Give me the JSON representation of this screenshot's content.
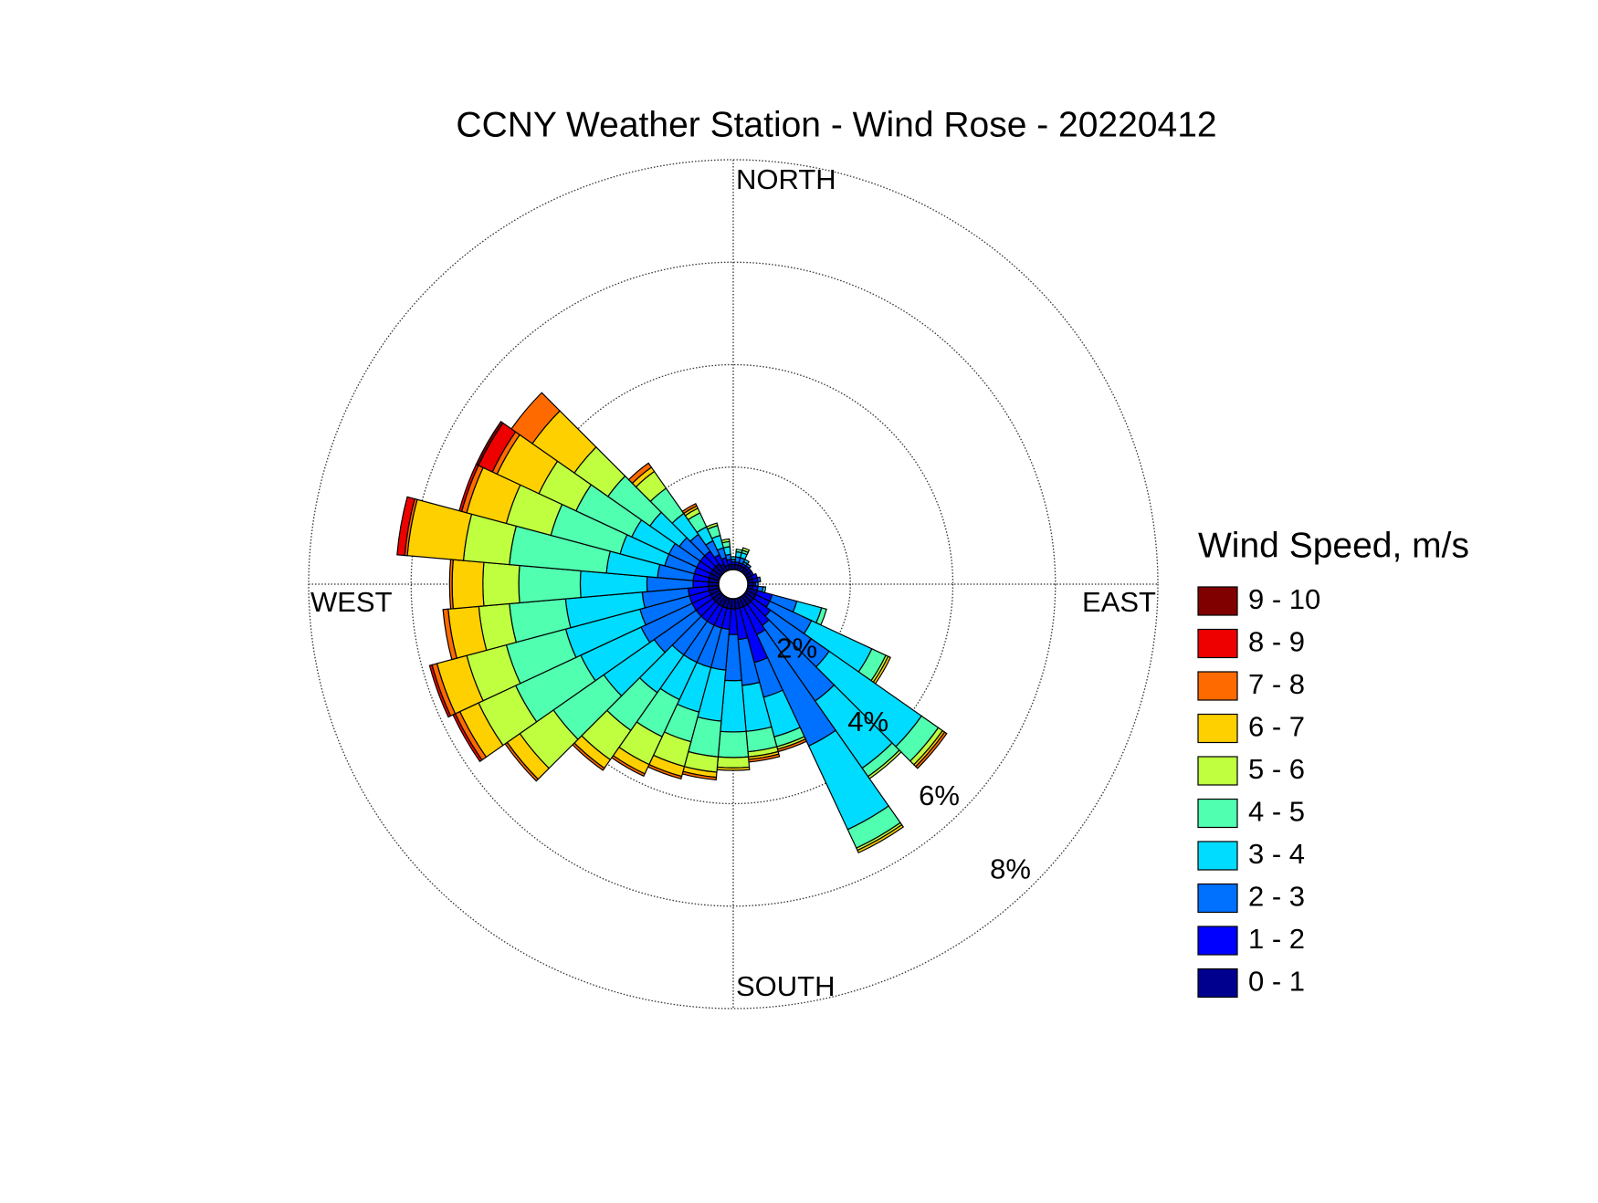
{
  "chart_data": {
    "type": "windrose",
    "title": "CCNY Weather Station - Wind Rose - 20220412",
    "legend_title": "Wind Speed, m/s",
    "direction_labels": [
      "NORTH",
      "EAST",
      "SOUTH",
      "WEST"
    ],
    "categories": [
      null,
      null,
      null,
      null,
      null,
      null,
      null,
      null,
      null,
      null,
      null,
      null,
      null,
      null,
      null,
      null,
      null,
      null,
      null,
      null,
      null,
      null,
      null,
      null,
      null,
      null,
      null,
      null,
      null,
      null,
      null,
      null,
      null,
      null,
      null,
      null
    ],
    "rlim": [
      0,
      8
    ],
    "rticks": [
      {
        "value": 2,
        "label": "2%"
      },
      {
        "value": 4,
        "label": "4%"
      },
      {
        "value": 6,
        "label": "6%"
      },
      {
        "value": 8,
        "label": "8%"
      }
    ],
    "series": [
      {
        "name": "0 - 1",
        "color": "#00008f",
        "values": [
          0.1,
          0.1,
          0.1,
          0.1,
          0.1,
          0.1,
          0.1,
          0.1,
          0.1,
          0.1,
          0.1,
          0.2,
          0.2,
          0.2,
          0.2,
          0.2,
          0.2,
          0.2,
          0.2,
          0.2,
          0.2,
          0.2,
          0.2,
          0.2,
          0.2,
          0.2,
          0.2,
          0.2,
          0.2,
          0.2,
          0.2,
          0.2,
          0.2,
          0.15,
          0.1,
          0.1
        ]
      },
      {
        "name": "1 - 2",
        "color": "#0000ff",
        "values": [
          0.05,
          0.05,
          0.05,
          0.05,
          0.05,
          0.05,
          0.05,
          0.1,
          0.1,
          0.05,
          0.1,
          0.3,
          0.3,
          0.4,
          0.5,
          0.6,
          1.1,
          0.6,
          0.5,
          0.4,
          0.4,
          0.4,
          0.4,
          0.4,
          0.4,
          0.4,
          0.4,
          0.3,
          0.3,
          0.3,
          0.3,
          0.3,
          0.3,
          0.2,
          0.15,
          0.1
        ]
      },
      {
        "name": "2 - 3",
        "color": "#0070ff",
        "values": [
          0.05,
          0.1,
          0.1,
          0.05,
          0.05,
          0,
          0,
          0,
          0.05,
          0.05,
          0.1,
          0.5,
          0.9,
          1.4,
          1.8,
          2.4,
          0.7,
          0.9,
          0.9,
          0.8,
          0.8,
          0.8,
          0.8,
          1.0,
          1.1,
          1.0,
          0.9,
          0.9,
          0.7,
          0.6,
          0.6,
          0.5,
          0.4,
          0.3,
          0.2,
          0.1
        ]
      },
      {
        "name": "3 - 4",
        "color": "#00dcff",
        "values": [
          0.05,
          0.1,
          0.1,
          0.05,
          0,
          0,
          0,
          0,
          0,
          0,
          0.05,
          0.5,
          1.3,
          2.2,
          1.6,
          1.8,
          0.8,
          0.9,
          1.0,
          1.0,
          0.9,
          0.8,
          0.9,
          1.2,
          1.3,
          1.5,
          1.5,
          1.3,
          1.0,
          0.9,
          0.8,
          0.7,
          0.5,
          0.3,
          0.25,
          0.15
        ]
      },
      {
        "name": "4 - 5",
        "color": "#50ffb0",
        "values": [
          0,
          0.05,
          0.05,
          0,
          0,
          0,
          0,
          0,
          0,
          0,
          0,
          0.1,
          0.3,
          0.4,
          0.2,
          0.4,
          0.2,
          0.4,
          0.5,
          0.7,
          0.6,
          0.8,
          0.9,
          1.2,
          1.4,
          1.2,
          1.1,
          1.2,
          1.9,
          1.4,
          1.2,
          1.0,
          0.6,
          0.3,
          0.2,
          0.1
        ]
      },
      {
        "name": "5 - 6",
        "color": "#bfff40",
        "values": [
          0,
          0,
          0.05,
          0,
          0,
          0,
          0,
          0,
          0,
          0,
          0,
          0,
          0.05,
          0.1,
          0.05,
          0.05,
          0.05,
          0.1,
          0.2,
          0.3,
          0.5,
          0.6,
          0.7,
          0.8,
          0.8,
          0.8,
          0.6,
          0.7,
          0.9,
          0.9,
          0.8,
          0.8,
          0.4,
          0.1,
          0.05,
          0.05
        ]
      },
      {
        "name": "6 - 7",
        "color": "#ffd000",
        "values": [
          0,
          0,
          0,
          0,
          0,
          0,
          0,
          0,
          0,
          0,
          0,
          0,
          0.05,
          0.05,
          0,
          0.05,
          0,
          0.05,
          0.05,
          0.1,
          0.2,
          0.2,
          0.2,
          0.3,
          0.4,
          0.6,
          0.6,
          0.6,
          1.1,
          0.8,
          0.9,
          1.0,
          0.1,
          0.05,
          0,
          0
        ]
      },
      {
        "name": "7 - 8",
        "color": "#ff6a00",
        "values": [
          0,
          0,
          0,
          0,
          0,
          0,
          0,
          0,
          0,
          0,
          0,
          0,
          0,
          0.05,
          0,
          0,
          0.05,
          0.05,
          0,
          0.05,
          0.05,
          0.05,
          0.05,
          0.05,
          0.1,
          0.1,
          0.1,
          0.05,
          0.05,
          0.1,
          0.1,
          0.5,
          0.1,
          0.05,
          0,
          0
        ]
      },
      {
        "name": "8 - 9",
        "color": "#ee0000",
        "values": [
          0,
          0,
          0,
          0,
          0,
          0,
          0,
          0,
          0,
          0,
          0,
          0,
          0,
          0,
          0,
          0,
          0,
          0,
          0,
          0,
          0,
          0,
          0,
          0,
          0.05,
          0.05,
          0,
          0,
          0.15,
          0.05,
          0.3,
          0,
          0,
          0,
          0,
          0
        ]
      },
      {
        "name": "9 - 10",
        "color": "#800000",
        "values": [
          0,
          0,
          0,
          0,
          0,
          0,
          0,
          0,
          0,
          0,
          0,
          0,
          0,
          0,
          0,
          0,
          0,
          0,
          0,
          0,
          0,
          0,
          0,
          0,
          0,
          0,
          0,
          0,
          0,
          0,
          0.05,
          0,
          0,
          0,
          0,
          0
        ]
      }
    ]
  }
}
